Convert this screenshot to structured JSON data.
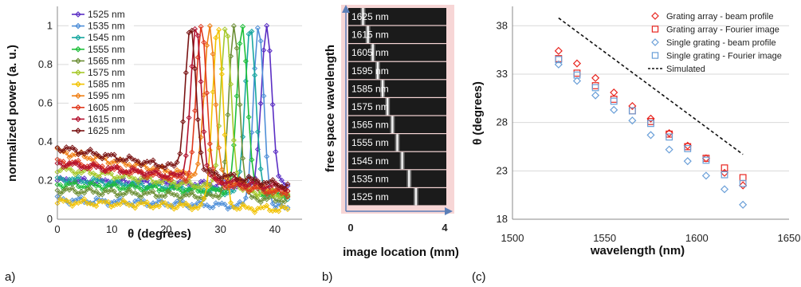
{
  "chart_data": [
    {
      "type": "line",
      "panel_label": "a)",
      "xlabel": "θ (degrees)",
      "ylabel": "normalized power (a. u.)",
      "xlim": [
        0,
        45
      ],
      "ylim": [
        0,
        1.1
      ],
      "xticks": [
        "0",
        "10",
        "20",
        "30",
        "40"
      ],
      "yticks": [
        "0",
        "0.2",
        "0.4",
        "0.6",
        "0.8",
        "1"
      ],
      "legend_position": "top-left",
      "marker": "diamond",
      "series": [
        {
          "name": "1525 nm",
          "color": "#5b2fc4",
          "peak": 38.5,
          "base": 0.2,
          "baseEnd": 0.17,
          "hump": 0.0
        },
        {
          "name": "1535 nm",
          "color": "#4f8fd8",
          "peak": 37.0,
          "base": 0.1,
          "baseEnd": 0.06,
          "hump": 0.0
        },
        {
          "name": "1545 nm",
          "color": "#19a7a0",
          "peak": 35.5,
          "base": 0.21,
          "baseEnd": 0.12,
          "hump": 0.0
        },
        {
          "name": "1555 nm",
          "color": "#1fbf3a",
          "peak": 34.0,
          "base": 0.18,
          "baseEnd": 0.13,
          "hump": 0.0
        },
        {
          "name": "1565 nm",
          "color": "#6d8f36",
          "peak": 32.5,
          "base": 0.15,
          "baseEnd": 0.1,
          "hump": 0.0
        },
        {
          "name": "1575 nm",
          "color": "#a6c82a",
          "peak": 31.0,
          "base": 0.26,
          "baseEnd": 0.12,
          "hump": 0.0
        },
        {
          "name": "1585 nm",
          "color": "#f2c200",
          "peak": 29.5,
          "base": 0.09,
          "baseEnd": 0.05,
          "hump": 0.0
        },
        {
          "name": "1595 nm",
          "color": "#f07f14",
          "peak": 28.0,
          "base": 0.35,
          "baseEnd": 0.14,
          "hump": 0.0
        },
        {
          "name": "1605 nm",
          "color": "#e03a1e",
          "peak": 26.5,
          "base": 0.3,
          "baseEnd": 0.13,
          "hump": 0.0
        },
        {
          "name": "1615 nm",
          "color": "#b3122f",
          "peak": 25.5,
          "base": 0.29,
          "baseEnd": 0.16,
          "hump": 0.0
        },
        {
          "name": "1625 nm",
          "color": "#7a1414",
          "peak": 24.5,
          "base": 0.37,
          "baseEnd": 0.17,
          "hump": 0.0
        }
      ]
    },
    {
      "type": "heatmap",
      "panel_label": "b)",
      "xlabel": "image location (mm)",
      "ylabel": "free space wavelength",
      "xticks": [
        "0",
        "4"
      ],
      "rows": [
        {
          "label": "1625 nm",
          "pos": 0.15
        },
        {
          "label": "1615 nm",
          "pos": 0.2
        },
        {
          "label": "1605 nm",
          "pos": 0.25
        },
        {
          "label": "1595 nm",
          "pos": 0.3
        },
        {
          "label": "1585 nm",
          "pos": 0.35
        },
        {
          "label": "1575 nm",
          "pos": 0.4
        },
        {
          "label": "1565 nm",
          "pos": 0.45
        },
        {
          "label": "1555 nm",
          "pos": 0.5
        },
        {
          "label": "1545 nm",
          "pos": 0.55
        },
        {
          "label": "1535 nm",
          "pos": 0.62
        },
        {
          "label": "1525 nm",
          "pos": 0.69
        }
      ]
    },
    {
      "type": "scatter",
      "panel_label": "(c)",
      "xlabel": "wavelength (nm)",
      "ylabel": "θ (degrees)",
      "xlim": [
        1500,
        1650
      ],
      "ylim": [
        18,
        40
      ],
      "xticks": [
        1500,
        1550,
        1600,
        1650
      ],
      "yticks": [
        18,
        23,
        28,
        33,
        38
      ],
      "legend_position": "top-right",
      "x": [
        1525,
        1535,
        1545,
        1555,
        1565,
        1575,
        1585,
        1595,
        1605,
        1615,
        1625
      ],
      "series": [
        {
          "name": "Grating array - beam profile",
          "marker": "diamond",
          "color": "#e8251f",
          "values": [
            35.4,
            34.1,
            32.6,
            31.1,
            29.7,
            28.4,
            26.9,
            25.6,
            24.3,
            22.8,
            21.5
          ]
        },
        {
          "name": "Grating array - Fourier image",
          "marker": "square",
          "color": "#e8251f",
          "values": [
            34.6,
            33.1,
            31.8,
            30.4,
            29.2,
            28.1,
            26.8,
            25.5,
            24.3,
            23.3,
            22.3
          ]
        },
        {
          "name": "Single grating - beam profile",
          "marker": "diamond",
          "color": "#6a9fd8",
          "values": [
            34.0,
            32.3,
            30.8,
            29.3,
            28.2,
            26.7,
            25.2,
            24.0,
            22.5,
            21.1,
            19.5
          ]
        },
        {
          "name": "Single grating - Fourier image",
          "marker": "square",
          "color": "#6a9fd8",
          "values": [
            34.5,
            32.9,
            31.6,
            30.2,
            29.2,
            27.9,
            26.5,
            25.3,
            24.1,
            22.6,
            21.7
          ]
        },
        {
          "name": "Simulated",
          "marker": "dashed-line",
          "color": "#111111",
          "x": [
            1525,
            1625
          ],
          "values": [
            38.8,
            24.7
          ]
        }
      ]
    }
  ]
}
